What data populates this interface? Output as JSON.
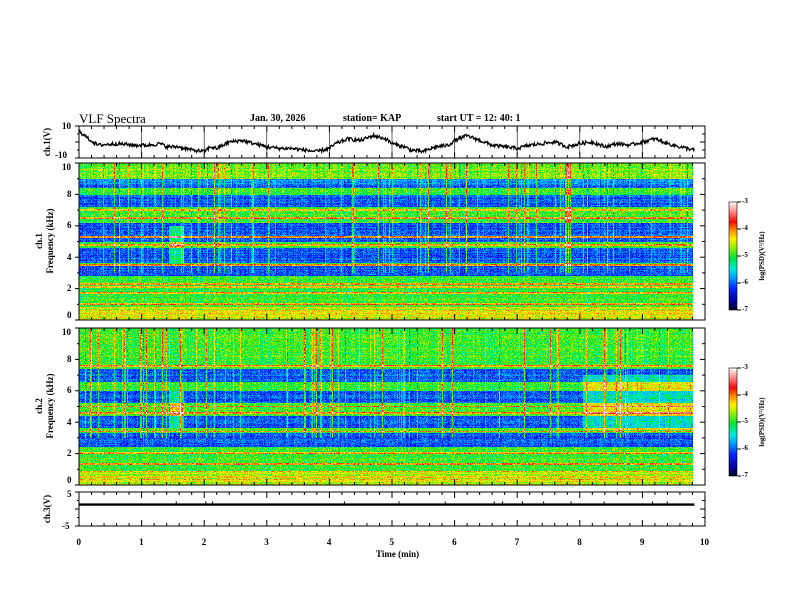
{
  "header": {
    "title": "VLF Spectra",
    "date": "Jan. 30, 2026",
    "station": "station= KAP",
    "start": "start  UT =   12: 40: 1"
  },
  "chart_data": [
    {
      "type": "line",
      "name": "ch1-timeseries",
      "ylabel": "ch.1(V)",
      "ylim": [
        -10,
        10
      ],
      "yticks": [
        "10",
        "-10"
      ],
      "xlim": [
        0,
        10
      ],
      "x_end": 9.83,
      "shape_points": [
        [
          0,
          7
        ],
        [
          0.15,
          2
        ],
        [
          0.3,
          -2
        ],
        [
          0.6,
          -1
        ],
        [
          0.9,
          -2
        ],
        [
          1.1,
          -2
        ],
        [
          1.3,
          -1
        ],
        [
          1.4,
          -3
        ],
        [
          1.6,
          -3
        ],
        [
          1.8,
          -5
        ],
        [
          2.0,
          -6
        ],
        [
          2.1,
          -3
        ],
        [
          2.2,
          -4
        ],
        [
          2.4,
          0
        ],
        [
          2.6,
          1
        ],
        [
          2.8,
          -1
        ],
        [
          3.0,
          -3
        ],
        [
          3.2,
          -4
        ],
        [
          3.4,
          -4
        ],
        [
          3.6,
          -5
        ],
        [
          3.8,
          -6
        ],
        [
          4.0,
          -4
        ],
        [
          4.1,
          -1
        ],
        [
          4.3,
          2
        ],
        [
          4.5,
          1
        ],
        [
          4.7,
          4
        ],
        [
          4.9,
          2
        ],
        [
          5.0,
          -1
        ],
        [
          5.2,
          -3
        ],
        [
          5.3,
          -5
        ],
        [
          5.5,
          -6
        ],
        [
          5.7,
          -3
        ],
        [
          5.9,
          -2
        ],
        [
          6.0,
          1
        ],
        [
          6.2,
          4
        ],
        [
          6.4,
          1
        ],
        [
          6.6,
          -2
        ],
        [
          6.8,
          -3
        ],
        [
          7.0,
          -4
        ],
        [
          7.2,
          -2
        ],
        [
          7.4,
          -1
        ],
        [
          7.6,
          0
        ],
        [
          7.8,
          -3
        ],
        [
          8.0,
          -1
        ],
        [
          8.2,
          0
        ],
        [
          8.4,
          -3
        ],
        [
          8.6,
          -1
        ],
        [
          8.8,
          -2
        ],
        [
          9.0,
          0
        ],
        [
          9.2,
          2
        ],
        [
          9.4,
          -1
        ],
        [
          9.6,
          -3
        ],
        [
          9.83,
          -5
        ]
      ]
    },
    {
      "type": "heatmap",
      "name": "ch1-spectrogram",
      "ylabel_line1": "ch.1",
      "ylabel_line2": "Frequency  (kHz)",
      "ylim": [
        0,
        10
      ],
      "yticks": [
        "0",
        "2",
        "4",
        "6",
        "8",
        "10"
      ],
      "xlim": [
        0,
        10
      ],
      "x_end": 9.83,
      "colorbar": {
        "label": "log(PSD)(V²/Hz)",
        "range": [
          -7,
          -3
        ],
        "ticks": [
          "-3",
          "-4",
          "-5",
          "-6",
          "-7"
        ]
      },
      "dark_bands_khz": [
        [
          3.6,
          4.6
        ],
        [
          5.0,
          6.2
        ],
        [
          7.2,
          8.0
        ],
        [
          8.4,
          9.0
        ],
        [
          2.8,
          3.4
        ]
      ],
      "bright_lines_khz": [
        0.2,
        0.4,
        0.6,
        1.0,
        1.7,
        2.1,
        2.3,
        3.5,
        4.8,
        5.3,
        6.5,
        7.0
      ]
    },
    {
      "type": "heatmap",
      "name": "ch2-spectrogram",
      "ylabel_line1": "ch.2",
      "ylabel_line2": "Frequency  (kHz)",
      "ylim": [
        0,
        10
      ],
      "yticks": [
        "0",
        "2",
        "4",
        "6",
        "8",
        "10"
      ],
      "xlim": [
        0,
        10
      ],
      "x_end": 9.83,
      "colorbar": {
        "label": "log(PSD)(V²/Hz)",
        "range": [
          -7,
          -3
        ],
        "ticks": [
          "-3",
          "-4",
          "-5",
          "-6",
          "-7"
        ]
      },
      "dark_bands_khz": [
        [
          3.6,
          4.4
        ],
        [
          2.4,
          3.3
        ],
        [
          5.2,
          6.0
        ],
        [
          6.6,
          7.4
        ]
      ],
      "bright_lines_khz": [
        0.2,
        0.5,
        0.8,
        1.3,
        2.0,
        3.4,
        4.6,
        5.0,
        7.6
      ]
    },
    {
      "type": "line",
      "name": "ch3-timeseries",
      "ylabel": "ch.3(V)",
      "ylim": [
        -5,
        5
      ],
      "yticks": [
        "5",
        "-5"
      ],
      "xlim": [
        0,
        10
      ],
      "x_end": 9.83,
      "level": 1.3,
      "band_halfwidth": 0.35,
      "xlabel": "Time  (min)",
      "xticks": [
        "0",
        "1",
        "2",
        "3",
        "4",
        "5",
        "6",
        "7",
        "8",
        "9",
        "10"
      ]
    }
  ]
}
